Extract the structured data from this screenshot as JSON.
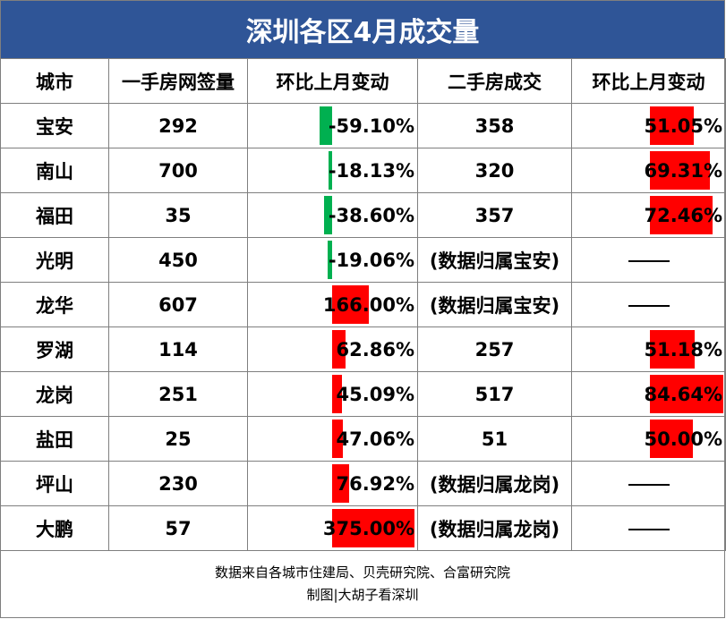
{
  "title": "深圳各区4月成交量",
  "headers": [
    "城市",
    "一手房网签量",
    "环比上月变动",
    "二手房成交",
    "环比上月变动"
  ],
  "rows": [
    {
      "city": "宝安",
      "new_sales": "292",
      "new_mom": "-59.10%",
      "new_mom_value": -59.1,
      "second": "358",
      "second_mom": "51.05%",
      "second_mom_value": 51.05
    },
    {
      "city": "南山",
      "new_sales": "700",
      "new_mom": "-18.13%",
      "new_mom_value": -18.13,
      "second": "320",
      "second_mom": "69.31%",
      "second_mom_value": 69.31
    },
    {
      "city": "福田",
      "new_sales": "35",
      "new_mom": "-38.60%",
      "new_mom_value": -38.6,
      "second": "357",
      "second_mom": "72.46%",
      "second_mom_value": 72.46
    },
    {
      "city": "光明",
      "new_sales": "450",
      "new_mom": "-19.06%",
      "new_mom_value": -19.06,
      "second": "(数据归属宝安)",
      "second_mom": "",
      "second_mom_value": null
    },
    {
      "city": "龙华",
      "new_sales": "607",
      "new_mom": "166.00%",
      "new_mom_value": 166.0,
      "second": "(数据归属宝安)",
      "second_mom": "",
      "second_mom_value": null
    },
    {
      "city": "罗湖",
      "new_sales": "114",
      "new_mom": "62.86%",
      "new_mom_value": 62.86,
      "second": "257",
      "second_mom": "51.18%",
      "second_mom_value": 51.18
    },
    {
      "city": "龙岗",
      "new_sales": "251",
      "new_mom": "45.09%",
      "new_mom_value": 45.09,
      "second": "517",
      "second_mom": "84.64%",
      "second_mom_value": 84.64
    },
    {
      "city": "盐田",
      "new_sales": "25",
      "new_mom": "47.06%",
      "new_mom_value": 47.06,
      "second": "51",
      "second_mom": "50.00%",
      "second_mom_value": 50.0
    },
    {
      "city": "坪山",
      "new_sales": "230",
      "new_mom": "76.92%",
      "new_mom_value": 76.92,
      "second": "(数据归属龙岗)",
      "second_mom": "",
      "second_mom_value": null
    },
    {
      "city": "大鹏",
      "new_sales": "57",
      "new_mom": "375.00%",
      "new_mom_value": 375.0,
      "second": "(数据归属龙岗)",
      "second_mom": "",
      "second_mom_value": null
    }
  ],
  "footer": {
    "source": "数据来自各城市住建局、贝壳研究院、合富研究院",
    "credit": "制图|大胡子看深圳"
  },
  "colors": {
    "title_bg": "#2f5597",
    "negative_bar": "#00b050",
    "positive_bar": "#ff0000",
    "border": "#7f7f7f"
  }
}
